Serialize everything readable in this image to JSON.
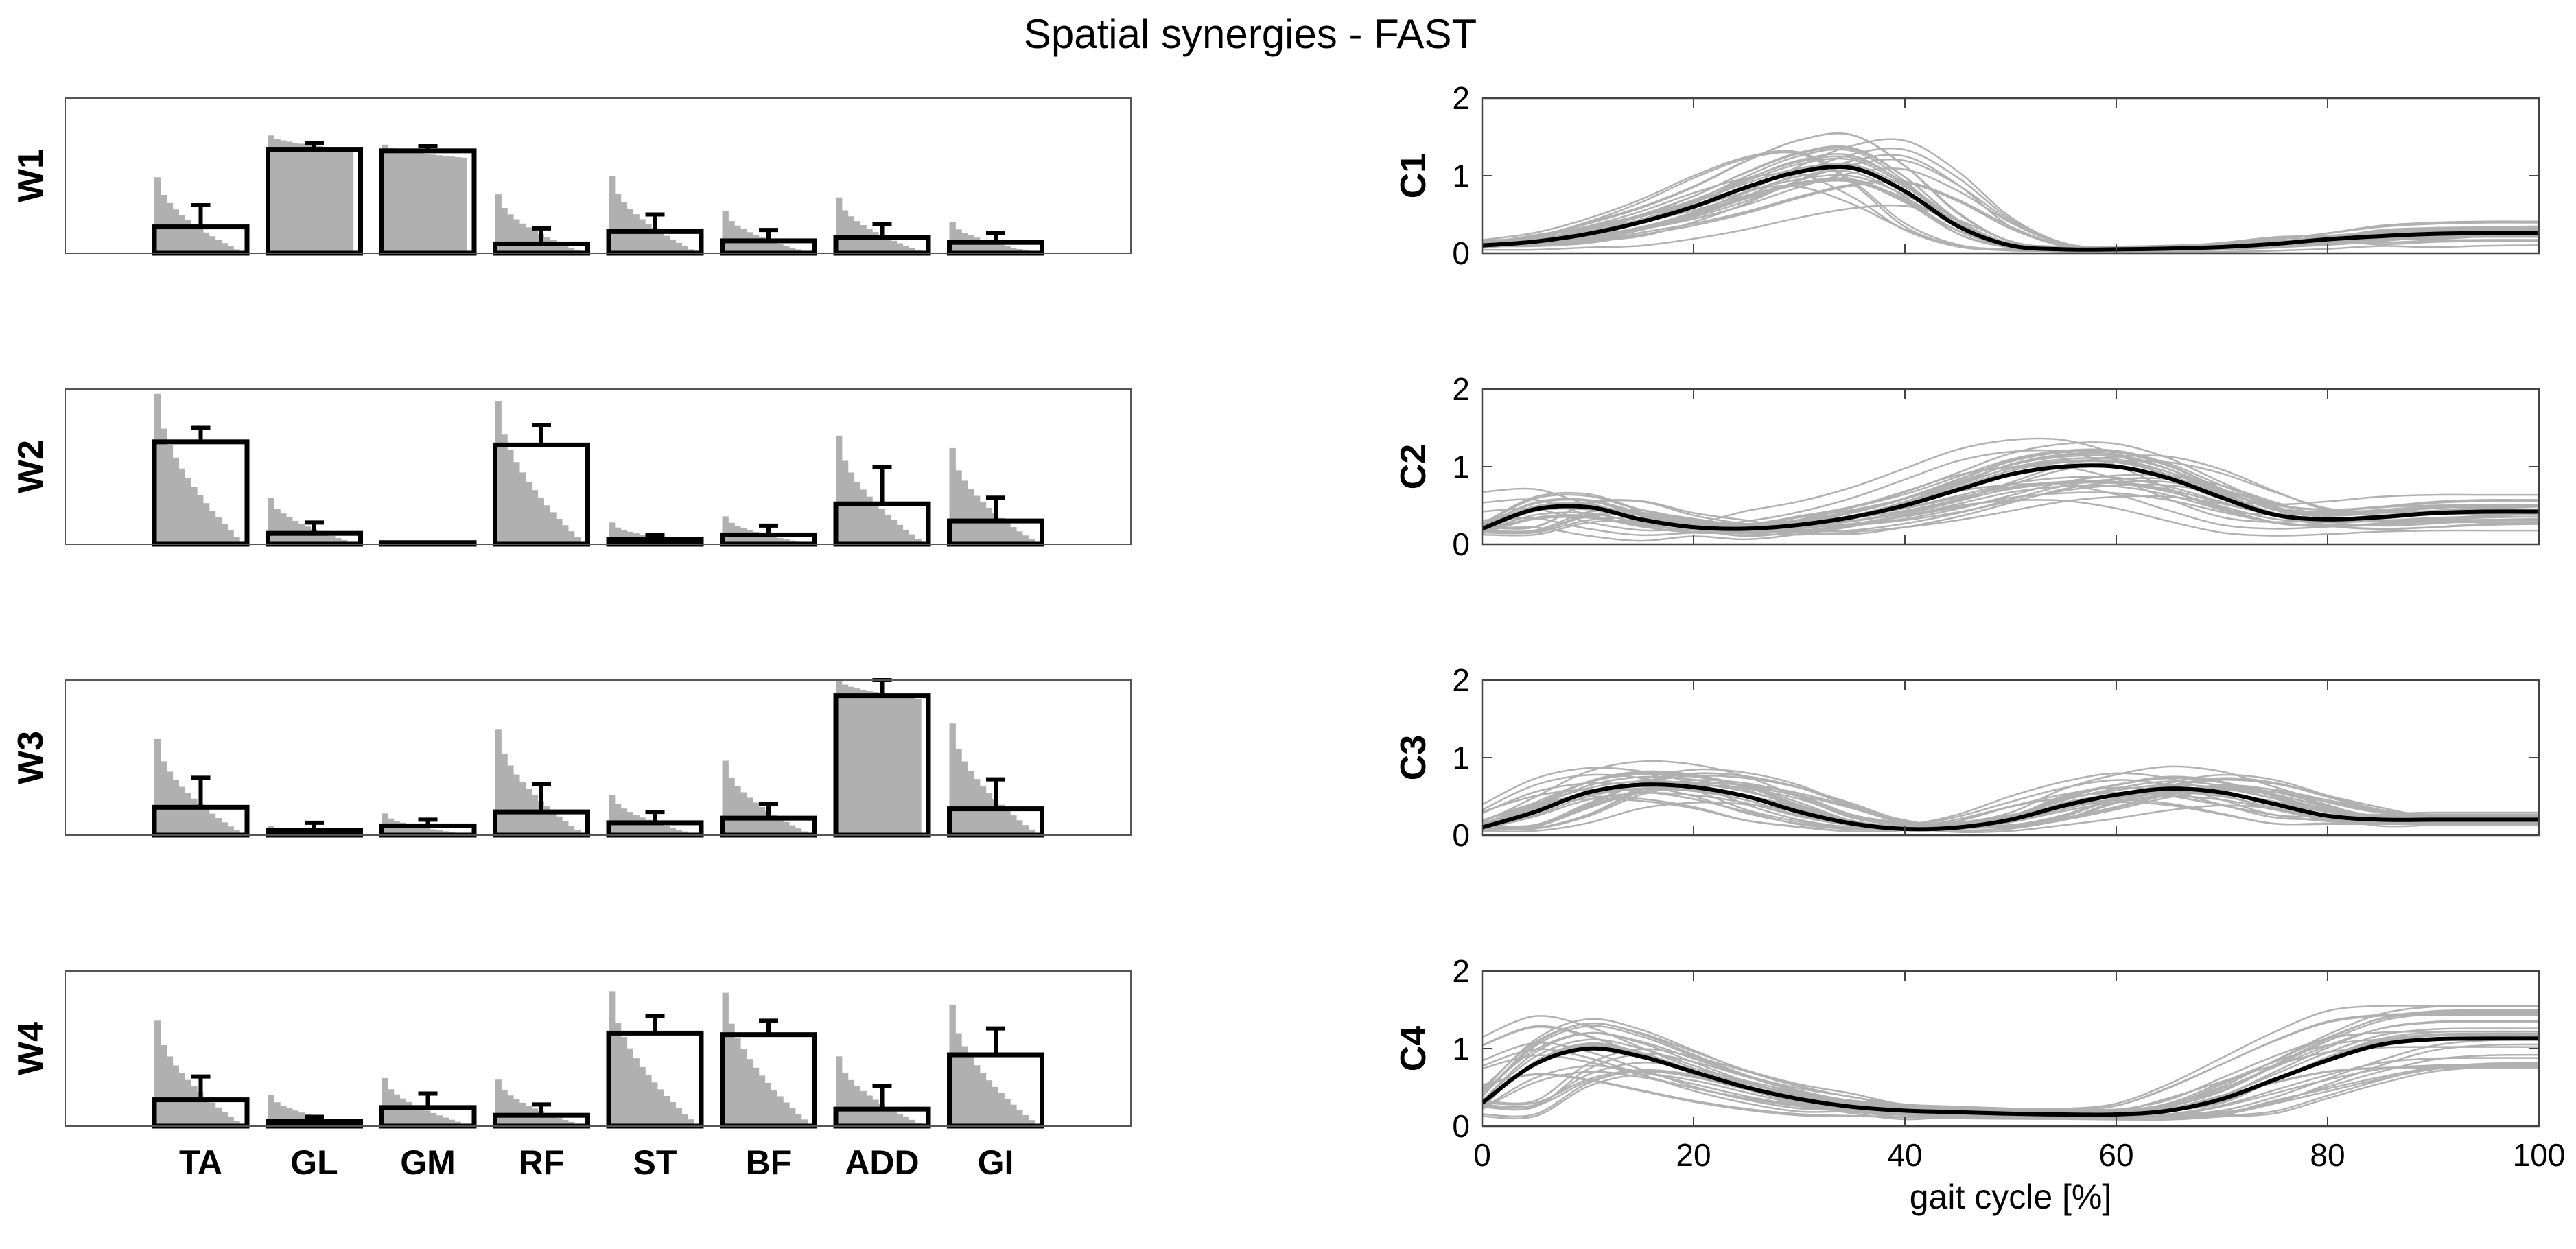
{
  "title": "Spatial synergies - FAST",
  "chart_data": [
    {
      "type": "bar",
      "ylabel": "W1",
      "categories": [
        "TA",
        "GL",
        "GM",
        "RF",
        "ST",
        "BF",
        "ADD",
        "GI"
      ],
      "values": [
        0.17,
        0.67,
        0.66,
        0.06,
        0.14,
        0.08,
        0.1,
        0.07
      ],
      "errors": [
        0.14,
        0.04,
        0.03,
        0.1,
        0.11,
        0.07,
        0.09,
        0.06
      ],
      "individual_max": [
        0.49,
        0.76,
        0.7,
        0.38,
        0.5,
        0.27,
        0.36,
        0.2
      ],
      "ylim": [
        0,
        1
      ]
    },
    {
      "type": "bar",
      "ylabel": "W2",
      "categories": [
        "TA",
        "GL",
        "GM",
        "RF",
        "ST",
        "BF",
        "ADD",
        "GI"
      ],
      "values": [
        0.66,
        0.07,
        0.01,
        0.64,
        0.03,
        0.06,
        0.26,
        0.15
      ],
      "errors": [
        0.09,
        0.07,
        0.0,
        0.13,
        0.03,
        0.06,
        0.24,
        0.15
      ],
      "individual_max": [
        0.97,
        0.3,
        0.02,
        0.92,
        0.14,
        0.18,
        0.7,
        0.62
      ],
      "ylim": [
        0,
        1
      ]
    },
    {
      "type": "bar",
      "ylabel": "W3",
      "categories": [
        "TA",
        "GL",
        "GM",
        "RF",
        "ST",
        "BF",
        "ADD",
        "GI"
      ],
      "values": [
        0.18,
        0.03,
        0.06,
        0.15,
        0.08,
        0.11,
        0.9,
        0.17
      ],
      "errors": [
        0.19,
        0.05,
        0.04,
        0.18,
        0.07,
        0.09,
        0.1,
        0.19
      ],
      "individual_max": [
        0.62,
        0.06,
        0.14,
        0.68,
        0.26,
        0.48,
        1.0,
        0.72
      ],
      "ylim": [
        0,
        1
      ]
    },
    {
      "type": "bar",
      "ylabel": "W4",
      "categories": [
        "TA",
        "GL",
        "GM",
        "RF",
        "ST",
        "BF",
        "ADD",
        "GI"
      ],
      "values": [
        0.17,
        0.03,
        0.12,
        0.07,
        0.6,
        0.59,
        0.11,
        0.46
      ],
      "errors": [
        0.15,
        0.03,
        0.09,
        0.07,
        0.11,
        0.09,
        0.15,
        0.17
      ],
      "individual_max": [
        0.68,
        0.2,
        0.31,
        0.3,
        0.87,
        0.86,
        0.45,
        0.78
      ],
      "ylim": [
        0,
        1
      ]
    },
    {
      "type": "line",
      "ylabel": "C1",
      "x": [
        0,
        5,
        10,
        15,
        20,
        25,
        30,
        35,
        40,
        45,
        50,
        55,
        60,
        65,
        70,
        75,
        80,
        85,
        90,
        95,
        100
      ],
      "mean": [
        0.1,
        0.15,
        0.25,
        0.4,
        0.6,
        0.85,
        1.05,
        1.1,
        0.8,
        0.35,
        0.1,
        0.05,
        0.05,
        0.06,
        0.08,
        0.12,
        0.18,
        0.22,
        0.25,
        0.26,
        0.26
      ],
      "xlim": [
        0,
        100
      ],
      "ylim": [
        0,
        2
      ],
      "yticks": [
        0,
        1,
        2
      ]
    },
    {
      "type": "line",
      "ylabel": "C2",
      "x": [
        0,
        5,
        10,
        15,
        20,
        25,
        30,
        35,
        40,
        45,
        50,
        55,
        60,
        65,
        70,
        75,
        80,
        85,
        90,
        95,
        100
      ],
      "mean": [
        0.2,
        0.45,
        0.48,
        0.32,
        0.22,
        0.2,
        0.25,
        0.35,
        0.5,
        0.7,
        0.9,
        1.0,
        1.0,
        0.85,
        0.6,
        0.38,
        0.32,
        0.35,
        0.4,
        0.42,
        0.42
      ],
      "xlim": [
        0,
        100
      ],
      "ylim": [
        0,
        2
      ],
      "yticks": [
        0,
        1,
        2
      ]
    },
    {
      "type": "line",
      "ylabel": "C3",
      "x": [
        0,
        5,
        10,
        15,
        20,
        25,
        30,
        35,
        40,
        45,
        50,
        55,
        60,
        65,
        70,
        75,
        80,
        85,
        90,
        95,
        100
      ],
      "mean": [
        0.1,
        0.3,
        0.55,
        0.65,
        0.62,
        0.5,
        0.3,
        0.15,
        0.08,
        0.1,
        0.2,
        0.38,
        0.52,
        0.6,
        0.55,
        0.4,
        0.25,
        0.2,
        0.2,
        0.2,
        0.2
      ],
      "xlim": [
        0,
        100
      ],
      "ylim": [
        0,
        2
      ],
      "yticks": [
        0,
        1,
        2
      ]
    },
    {
      "type": "line",
      "ylabel": "C4",
      "x": [
        0,
        5,
        10,
        15,
        20,
        25,
        30,
        35,
        40,
        45,
        50,
        55,
        60,
        65,
        70,
        75,
        80,
        85,
        90,
        95,
        100
      ],
      "mean": [
        0.3,
        0.8,
        1.0,
        0.9,
        0.7,
        0.5,
        0.35,
        0.25,
        0.2,
        0.18,
        0.16,
        0.15,
        0.15,
        0.2,
        0.35,
        0.6,
        0.85,
        1.05,
        1.12,
        1.13,
        1.13
      ],
      "xlim": [
        0,
        100
      ],
      "ylim": [
        0,
        2
      ],
      "yticks": [
        0,
        1,
        2
      ],
      "xlabel": "gait cycle [%]",
      "xticks": [
        0,
        20,
        40,
        60,
        80,
        100
      ]
    }
  ],
  "colors": {
    "individual": "#b0b0b0",
    "mean": "#000000",
    "axis": "#000000"
  }
}
